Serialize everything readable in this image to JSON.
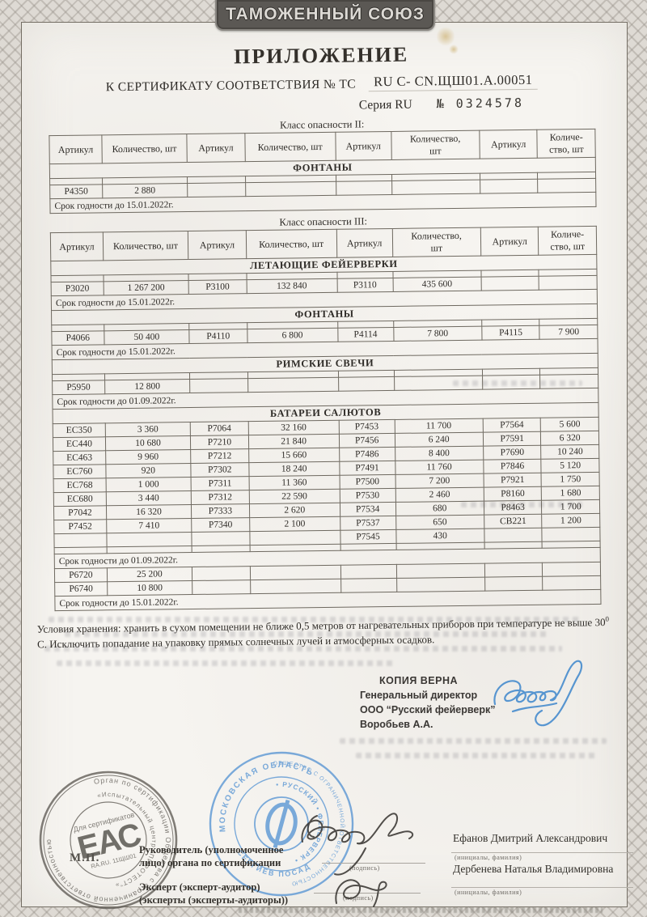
{
  "header": {
    "badge": "ТАМОЖЕННЫЙ СОЮЗ",
    "title": "ПРИЛОЖЕНИЕ",
    "subtitle": "К СЕРТИФИКАТУ СООТВЕТСТВИЯ  № ТС",
    "cert_number": "RU C- CN.ЩШ01.А.00051",
    "series_label": "Серия RU",
    "series_number": "№ 0324578"
  },
  "tables": [
    {
      "caption": "Класс опасности II:",
      "headers": [
        "Артикул",
        "Количество, шт",
        "Артикул",
        "Количество, шт",
        "Артикул",
        "Количество,\nшт",
        "Артикул",
        "Количе-\nство, шт"
      ],
      "sections": [
        {
          "title": "ФОНТАНЫ",
          "spacer_before": true,
          "rows": [
            [
              "P4350",
              "2 880",
              "",
              "",
              "",
              "",
              "",
              ""
            ]
          ],
          "footer": "Срок годности до 15.01.2022г."
        }
      ]
    },
    {
      "caption": "Класс опасности III:",
      "headers": [
        "Артикул",
        "Количество, шт",
        "Артикул",
        "Количество, шт",
        "Артикул",
        "Количество,\nшт",
        "Артикул",
        "Количе-\nство, шт"
      ],
      "sections": [
        {
          "title": "ЛЕТАЮЩИЕ ФЕЙЕРВЕРКИ",
          "spacer_before": true,
          "rows": [
            [
              "P3020",
              "1 267 200",
              "P3100",
              "132 840",
              "P3110",
              "435 600",
              "",
              ""
            ]
          ],
          "footer": "Срок годности до 15.01.2022г."
        },
        {
          "title": "ФОНТАНЫ",
          "spacer_before": true,
          "rows": [
            [
              "P4066",
              "50 400",
              "P4110",
              "6 800",
              "P4114",
              "7 800",
              "P4115",
              "7 900"
            ]
          ],
          "footer": "Срок годности до 15.01.2022г."
        },
        {
          "title": "РИМСКИЕ СВЕЧИ",
          "spacer_before": true,
          "rows": [
            [
              "P5950",
              "12 800",
              "",
              "",
              "",
              "",
              "",
              ""
            ]
          ],
          "footer": "Срок годности до 01.09.2022г."
        },
        {
          "title": "БАТАРЕИ САЛЮТОВ",
          "spacer_before": false,
          "spacer_after": true,
          "rows": [
            [
              "EC350",
              "3 360",
              "P7064",
              "32 160",
              "P7453",
              "11 700",
              "P7564",
              "5 600"
            ],
            [
              "EC440",
              "10 680",
              "P7210",
              "21 840",
              "P7456",
              "6 240",
              "P7591",
              "6 320"
            ],
            [
              "EC463",
              "9 960",
              "P7212",
              "15 660",
              "P7486",
              "8 400",
              "P7690",
              "10 240"
            ],
            [
              "EC760",
              "920",
              "P7302",
              "18 240",
              "P7491",
              "11 760",
              "P7846",
              "5 120"
            ],
            [
              "EC768",
              "1 000",
              "P7311",
              "11 360",
              "P7500",
              "7 200",
              "P7921",
              "1 750"
            ],
            [
              "EC680",
              "3 440",
              "P7312",
              "22 590",
              "P7530",
              "2 460",
              "P8160",
              "1 680"
            ],
            [
              "P7042",
              "16 320",
              "P7333",
              "2 620",
              "P7534",
              "680",
              "P8463",
              "1 700"
            ],
            [
              "P7452",
              "7 410",
              "P7340",
              "2 100",
              "P7537",
              "650",
              "CB221",
              "1 200"
            ],
            [
              "",
              "",
              "",
              "",
              "P7545",
              "430",
              "",
              ""
            ]
          ],
          "footer": "Срок годности до 01.09.2022г."
        },
        {
          "title": null,
          "rows": [
            [
              "P6720",
              "25 200",
              "",
              "",
              "",
              "",
              "",
              ""
            ],
            [
              "P6740",
              "10 800",
              "",
              "",
              "",
              "",
              "",
              ""
            ]
          ],
          "footer": "Срок годности до 15.01.2022г."
        }
      ]
    }
  ],
  "storage_note_1": "Условия хранения: хранить в сухом помещении не ближе 0,5 метров от нагревательных приборов при температуре не",
  "storage_note_2": "выше 30",
  "storage_note_sup": "0",
  "storage_note_3": " С. Исключить попадание на упаковку прямых солнечных лучей и атмосферных осадков.",
  "copy_block": {
    "title": "КОПИЯ ВЕРНА",
    "line1": "Генеральный директор",
    "line2": "ООО “Русский фейерверк”",
    "line3": "Воробьев А.А."
  },
  "signing": {
    "role1": "Руководитель (уполномоченное\nлицо) органа по сертификации",
    "role2": "Эксперт (эксперт-аудитор)\n(эксперты (эксперты-аудиторы))",
    "sign_caption": "(подпись)",
    "name1": "Ефанов Дмитрий Александрович",
    "name2": "Дербенева Наталья Владимировна",
    "name_caption": "(инициалы, фамилия)",
    "mp": "М.П."
  },
  "stamps": {
    "eac": {
      "ring_text": "Орган по сертификации Общества с ограниченной ответственностью",
      "inner_ring_text": "«Испытательный центр “ПИРОТЕСТ”»",
      "center_top": "Для сертификатов",
      "center": "ЕАС",
      "center_bottom": "RA.RU. 11ЩШ01",
      "color": "#5f5b55"
    },
    "company": {
      "top_arc": "МОСКОВСКАЯ ОБЛАСТЬ",
      "ring": "ОБЩЕСТВО С ОГРАНИЧЕННОЙ ОТВЕТСТВЕННОСТЬЮ",
      "brand": "• РУССКИЙ • ФЕЙЕРВЕРК •",
      "bottom_arc": "СЕРГИЕВ ПОСАД",
      "color": "#5b97d4"
    }
  }
}
